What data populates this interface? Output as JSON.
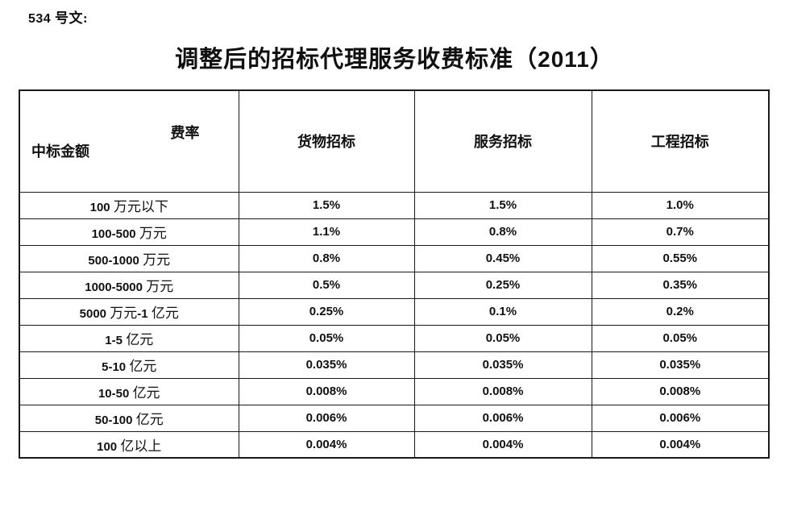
{
  "doc_number": "534 号文:",
  "title": "调整后的招标代理服务收费标准（2011）",
  "table": {
    "corner": {
      "top_right": "费率",
      "bottom_left": "中标金额"
    },
    "columns": [
      "货物招标",
      "服务招标",
      "工程招标"
    ],
    "rows": [
      {
        "label": "100 万元以下",
        "values": [
          "1.5%",
          "1.5%",
          "1.0%"
        ]
      },
      {
        "label": "100-500 万元",
        "values": [
          "1.1%",
          "0.8%",
          "0.7%"
        ]
      },
      {
        "label": "500-1000 万元",
        "values": [
          "0.8%",
          "0.45%",
          "0.55%"
        ]
      },
      {
        "label": "1000-5000 万元",
        "values": [
          "0.5%",
          "0.25%",
          "0.35%"
        ]
      },
      {
        "label": "5000 万元-1 亿元",
        "values": [
          "0.25%",
          "0.1%",
          "0.2%"
        ]
      },
      {
        "label": "1-5 亿元",
        "values": [
          "0.05%",
          "0.05%",
          "0.05%"
        ]
      },
      {
        "label": "5-10 亿元",
        "values": [
          "0.035%",
          "0.035%",
          "0.035%"
        ]
      },
      {
        "label": "10-50 亿元",
        "values": [
          "0.008%",
          "0.008%",
          "0.008%"
        ]
      },
      {
        "label": "50-100 亿元",
        "values": [
          "0.006%",
          "0.006%",
          "0.006%"
        ]
      },
      {
        "label": "100 亿以上",
        "values": [
          "0.004%",
          "0.004%",
          "0.004%"
        ]
      }
    ]
  },
  "colors": {
    "text": "#111111",
    "border": "#1a1a1a",
    "background": "#ffffff"
  }
}
